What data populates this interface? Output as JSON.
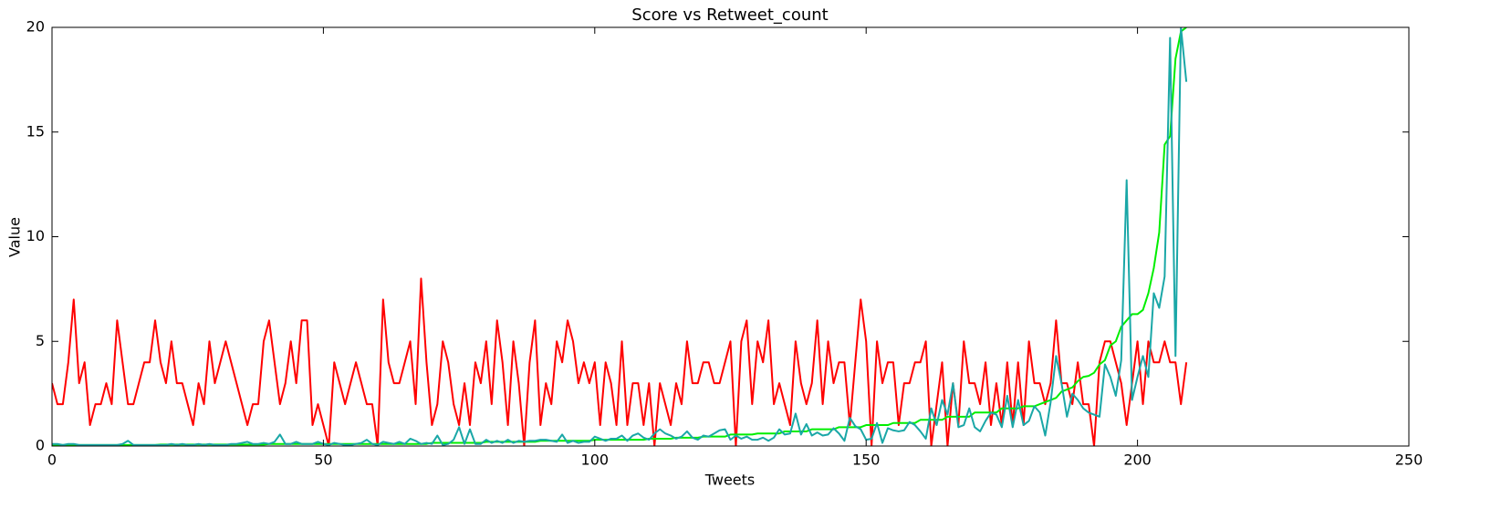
{
  "chart_data": {
    "type": "line",
    "title": "Score vs Retweet_count",
    "x_label": "Tweets",
    "y_label": "Value",
    "x": [
      0,
      1,
      2,
      3,
      4,
      5,
      6,
      7,
      8,
      9,
      10,
      11,
      12,
      13,
      14,
      15,
      16,
      17,
      18,
      19,
      20,
      21,
      22,
      23,
      24,
      25,
      26,
      27,
      28,
      29,
      30,
      31,
      32,
      33,
      34,
      35,
      36,
      37,
      38,
      39,
      40,
      41,
      42,
      43,
      44,
      45,
      46,
      47,
      48,
      49,
      50,
      51,
      52,
      53,
      54,
      55,
      56,
      57,
      58,
      59,
      60,
      61,
      62,
      63,
      64,
      65,
      66,
      67,
      68,
      69,
      70,
      71,
      72,
      73,
      74,
      75,
      76,
      77,
      78,
      79,
      80,
      81,
      82,
      83,
      84,
      85,
      86,
      87,
      88,
      89,
      90,
      91,
      92,
      93,
      94,
      95,
      96,
      97,
      98,
      99,
      100,
      101,
      102,
      103,
      104,
      105,
      106,
      107,
      108,
      109,
      110,
      111,
      112,
      113,
      114,
      115,
      116,
      117,
      118,
      119,
      120,
      121,
      122,
      123,
      124,
      125,
      126,
      127,
      128,
      129,
      130,
      131,
      132,
      133,
      134,
      135,
      136,
      137,
      138,
      139,
      140,
      141,
      142,
      143,
      144,
      145,
      146,
      147,
      148,
      149,
      150,
      151,
      152,
      153,
      154,
      155,
      156,
      157,
      158,
      159,
      160,
      161,
      162,
      163,
      164,
      165,
      166,
      167,
      168,
      169,
      170,
      171,
      172,
      173,
      174,
      175,
      176,
      177,
      178,
      179,
      180,
      181,
      182,
      183,
      184,
      185,
      186,
      187,
      188,
      189,
      190,
      191,
      192,
      193,
      194,
      195,
      196,
      197,
      198,
      199,
      200,
      201,
      202,
      203,
      204,
      205,
      206,
      207,
      208,
      209
    ],
    "series": [
      {
        "color": "#ff0000",
        "values": [
          3,
          2,
          2,
          4,
          7,
          3,
          4,
          1,
          2,
          2,
          3,
          2,
          6,
          4,
          2,
          2,
          3,
          4,
          4,
          6,
          4,
          3,
          5,
          3,
          3,
          2,
          1,
          3,
          2,
          5,
          3,
          4,
          5,
          4,
          3,
          2,
          1,
          2,
          2,
          5,
          6,
          4,
          2,
          3,
          5,
          3,
          6,
          6,
          1,
          2,
          1,
          0,
          4,
          3,
          2,
          3,
          4,
          3,
          2,
          2,
          0,
          7,
          4,
          3,
          3,
          4,
          5,
          2,
          8,
          4,
          1,
          2,
          5,
          4,
          2,
          1,
          3,
          1,
          4,
          3,
          5,
          2,
          6,
          4,
          1,
          5,
          3,
          0,
          4,
          6,
          1,
          3,
          2,
          5,
          4,
          6,
          5,
          3,
          4,
          3,
          4,
          1,
          4,
          3,
          1,
          5,
          1,
          3,
          3,
          1,
          3,
          0,
          3,
          2,
          1,
          3,
          2,
          5,
          3,
          3,
          4,
          4,
          3,
          3,
          4,
          5,
          0,
          5,
          6,
          2,
          5,
          4,
          6,
          2,
          3,
          2,
          1,
          5,
          3,
          2,
          3,
          6,
          2,
          5,
          3,
          4,
          4,
          1,
          4,
          7,
          5,
          0,
          5,
          3,
          4,
          4,
          1,
          3,
          3,
          4,
          4,
          5,
          0,
          2,
          4,
          0,
          3,
          1,
          5,
          3,
          3,
          2,
          4,
          1,
          3,
          1,
          4,
          1,
          4,
          1,
          5,
          3,
          3,
          2,
          3,
          6,
          3,
          3,
          2,
          4,
          2,
          2,
          0,
          4,
          5,
          5,
          4,
          3,
          1,
          3,
          5,
          2,
          5,
          4,
          4,
          5,
          4,
          4,
          2,
          4
        ]
      },
      {
        "color": "#00ee00",
        "values": [
          0.05,
          0.05,
          0.05,
          0.05,
          0.05,
          0.05,
          0.05,
          0.05,
          0.05,
          0.05,
          0.05,
          0.05,
          0.05,
          0.05,
          0.05,
          0.05,
          0.05,
          0.05,
          0.05,
          0.05,
          0.07,
          0.07,
          0.07,
          0.07,
          0.07,
          0.07,
          0.07,
          0.07,
          0.07,
          0.07,
          0.07,
          0.07,
          0.07,
          0.07,
          0.07,
          0.07,
          0.07,
          0.07,
          0.07,
          0.07,
          0.1,
          0.1,
          0.1,
          0.1,
          0.1,
          0.1,
          0.1,
          0.1,
          0.1,
          0.1,
          0.1,
          0.1,
          0.1,
          0.1,
          0.1,
          0.1,
          0.1,
          0.1,
          0.1,
          0.1,
          0.1,
          0.1,
          0.1,
          0.1,
          0.1,
          0.1,
          0.1,
          0.1,
          0.1,
          0.1,
          0.15,
          0.15,
          0.15,
          0.15,
          0.15,
          0.15,
          0.15,
          0.15,
          0.15,
          0.15,
          0.2,
          0.2,
          0.2,
          0.2,
          0.2,
          0.2,
          0.2,
          0.2,
          0.2,
          0.2,
          0.25,
          0.25,
          0.25,
          0.25,
          0.25,
          0.25,
          0.25,
          0.25,
          0.25,
          0.25,
          0.3,
          0.3,
          0.3,
          0.3,
          0.3,
          0.3,
          0.3,
          0.3,
          0.3,
          0.3,
          0.35,
          0.35,
          0.35,
          0.35,
          0.35,
          0.4,
          0.4,
          0.4,
          0.4,
          0.4,
          0.45,
          0.45,
          0.45,
          0.45,
          0.45,
          0.55,
          0.55,
          0.55,
          0.55,
          0.55,
          0.6,
          0.6,
          0.6,
          0.6,
          0.6,
          0.7,
          0.7,
          0.7,
          0.7,
          0.7,
          0.8,
          0.8,
          0.8,
          0.8,
          0.8,
          0.9,
          0.9,
          0.9,
          0.9,
          0.9,
          1.0,
          1.0,
          1.0,
          1.0,
          1.0,
          1.1,
          1.1,
          1.1,
          1.1,
          1.1,
          1.25,
          1.25,
          1.25,
          1.25,
          1.25,
          1.4,
          1.4,
          1.4,
          1.4,
          1.4,
          1.6,
          1.6,
          1.6,
          1.6,
          1.6,
          1.8,
          1.8,
          1.8,
          1.8,
          1.9,
          1.9,
          1.9,
          2.0,
          2.1,
          2.2,
          2.3,
          2.6,
          2.7,
          2.8,
          3.1,
          3.3,
          3.35,
          3.5,
          3.9,
          4.1,
          4.8,
          5.0,
          5.7,
          6.0,
          6.3,
          6.3,
          6.5,
          7.3,
          8.5,
          10.2,
          14.4,
          14.8,
          18.5,
          19.8,
          20
        ]
      },
      {
        "color": "#1aa7a7",
        "values": [
          0.1,
          0.1,
          0.05,
          0.1,
          0.1,
          0.05,
          0.05,
          0.05,
          0.05,
          0.05,
          0.05,
          0.05,
          0.05,
          0.1,
          0.25,
          0.05,
          0.05,
          0.05,
          0.05,
          0.05,
          0.05,
          0.05,
          0.1,
          0.05,
          0.1,
          0.05,
          0.05,
          0.1,
          0.05,
          0.1,
          0.05,
          0.05,
          0.05,
          0.1,
          0.1,
          0.15,
          0.2,
          0.1,
          0.1,
          0.15,
          0.1,
          0.2,
          0.55,
          0.1,
          0.1,
          0.2,
          0.1,
          0.1,
          0.1,
          0.2,
          0.1,
          0.05,
          0.15,
          0.1,
          0.05,
          0.05,
          0.1,
          0.15,
          0.3,
          0.1,
          0.05,
          0.2,
          0.15,
          0.1,
          0.2,
          0.1,
          0.35,
          0.25,
          0.1,
          0.15,
          0.1,
          0.5,
          0.05,
          0.1,
          0.3,
          0.9,
          0.1,
          0.8,
          0.1,
          0.1,
          0.3,
          0.15,
          0.25,
          0.15,
          0.3,
          0.15,
          0.25,
          0.2,
          0.25,
          0.25,
          0.3,
          0.3,
          0.25,
          0.2,
          0.55,
          0.15,
          0.25,
          0.15,
          0.2,
          0.2,
          0.45,
          0.35,
          0.25,
          0.35,
          0.35,
          0.5,
          0.25,
          0.5,
          0.6,
          0.4,
          0.3,
          0.6,
          0.8,
          0.6,
          0.5,
          0.35,
          0.45,
          0.7,
          0.4,
          0.3,
          0.5,
          0.45,
          0.6,
          0.75,
          0.8,
          0.3,
          0.5,
          0.35,
          0.45,
          0.3,
          0.3,
          0.4,
          0.25,
          0.4,
          0.8,
          0.55,
          0.6,
          1.55,
          0.55,
          1.05,
          0.5,
          0.65,
          0.5,
          0.55,
          0.85,
          0.6,
          0.25,
          1.35,
          0.95,
          0.8,
          0.3,
          0.35,
          1.1,
          0.15,
          0.85,
          0.75,
          0.7,
          0.75,
          1.15,
          1.0,
          0.7,
          0.35,
          1.8,
          1.0,
          2.2,
          1.5,
          3.0,
          0.9,
          1.0,
          1.8,
          0.9,
          0.7,
          1.2,
          1.6,
          1.5,
          0.9,
          2.4,
          0.9,
          2.2,
          1.0,
          1.2,
          1.9,
          1.6,
          0.5,
          2.1,
          4.3,
          3.0,
          1.4,
          2.5,
          2.2,
          1.8,
          1.6,
          1.5,
          1.4,
          3.9,
          3.3,
          2.4,
          4.1,
          12.7,
          2.2,
          3.3,
          4.3,
          3.3,
          7.3,
          6.6,
          8.1,
          19.5,
          4.3,
          20,
          17.4
        ]
      }
    ],
    "xlim": [
      0,
      250
    ],
    "xticks": [
      0,
      50,
      100,
      150,
      200,
      250
    ],
    "ylim": [
      0,
      20
    ],
    "yticks": [
      0,
      5,
      10,
      15,
      20
    ],
    "grid": false
  }
}
